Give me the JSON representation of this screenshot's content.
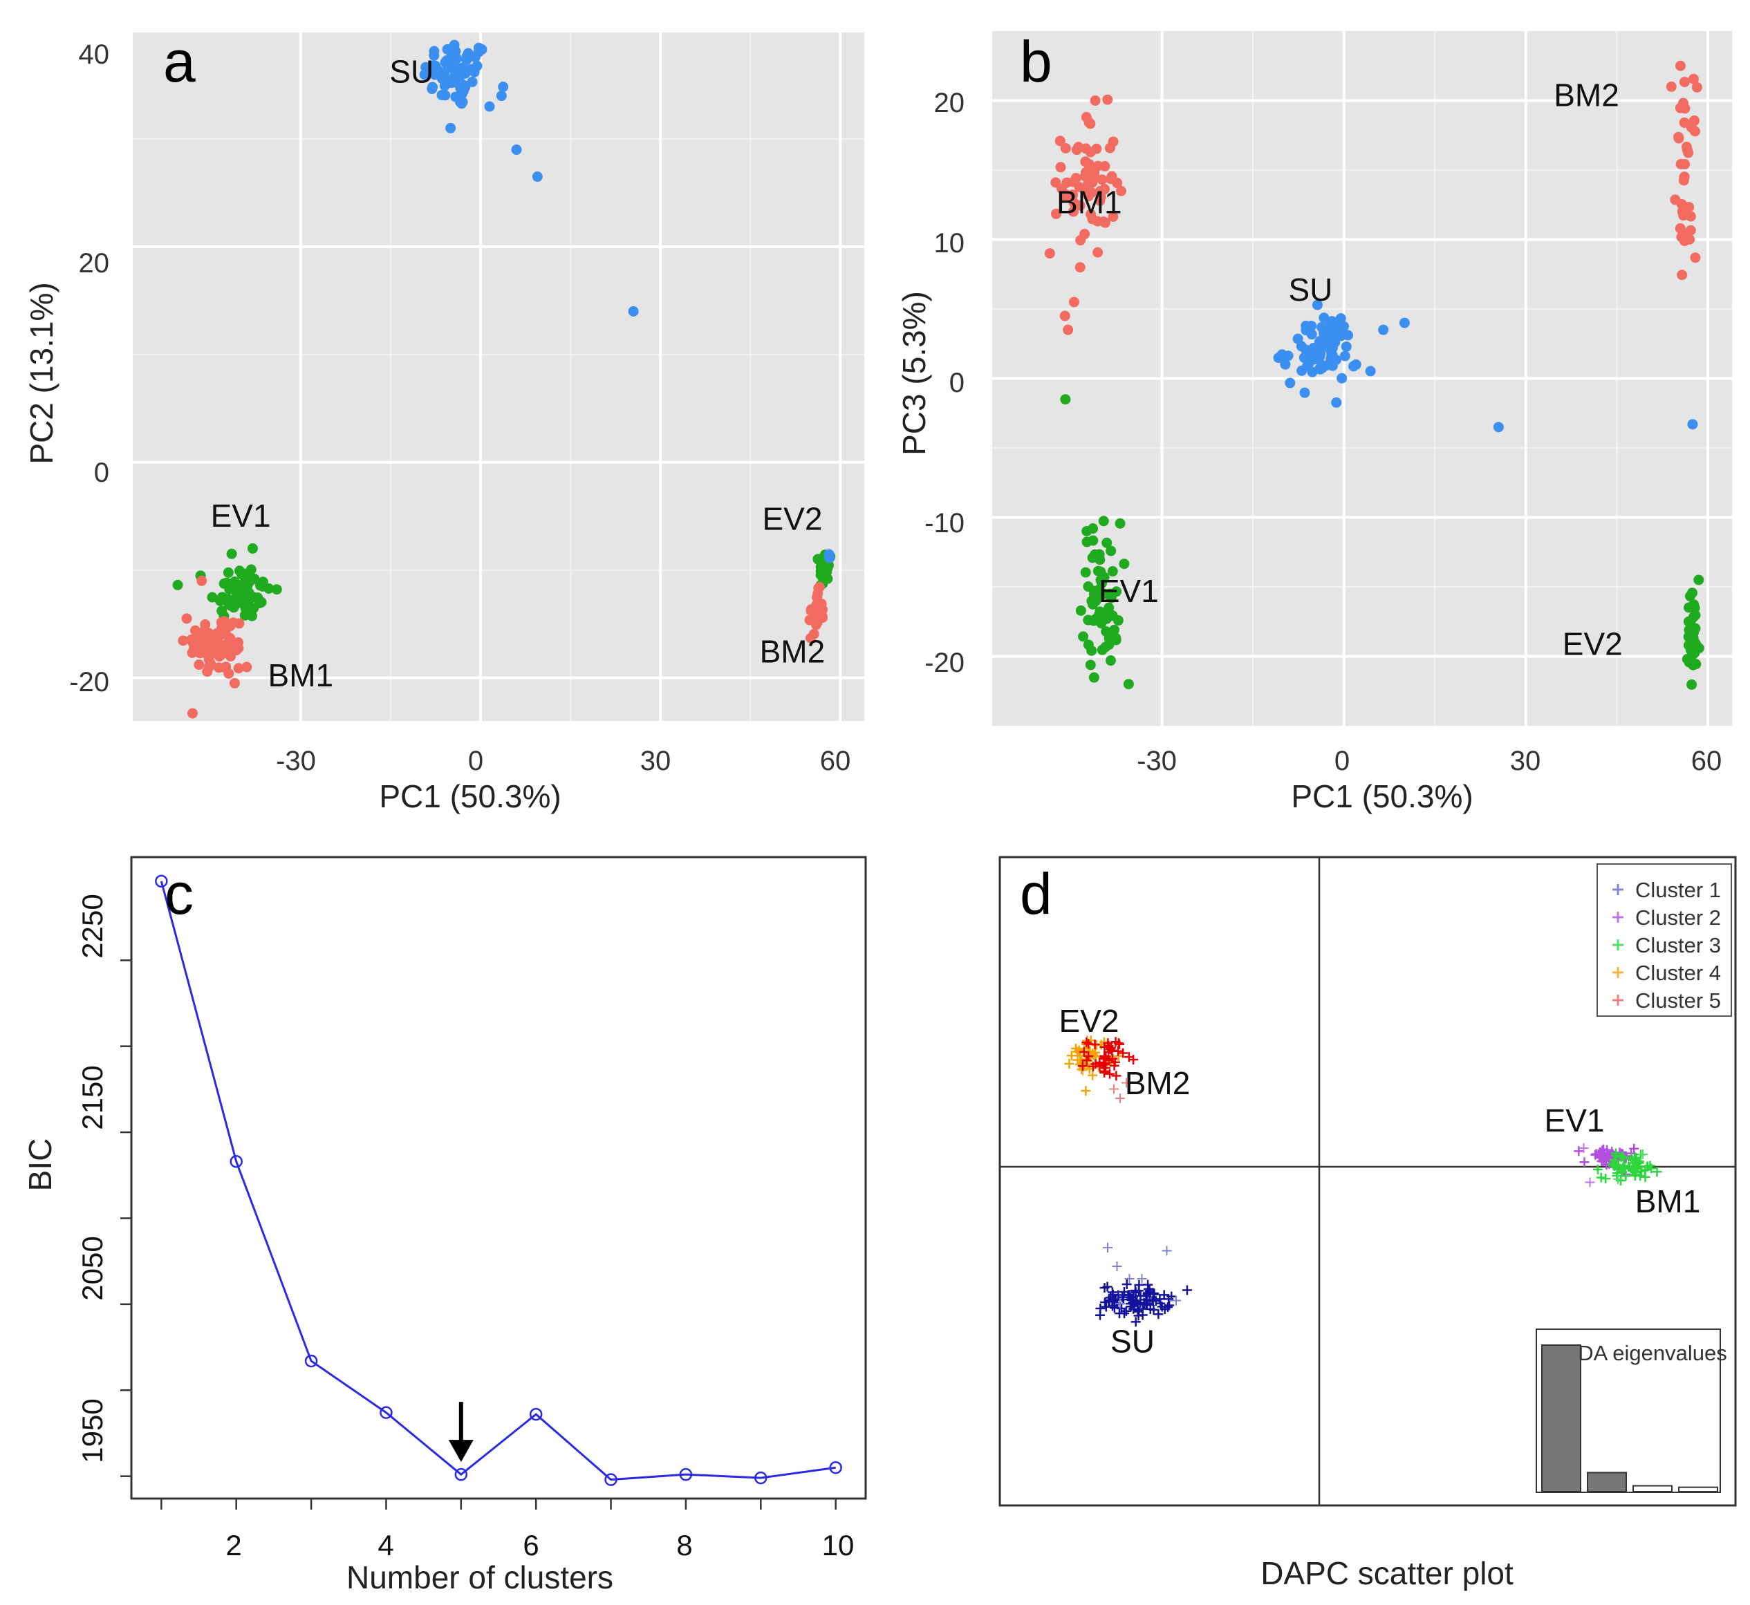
{
  "colors": {
    "SU": "#3a8ff0",
    "BM": "#f26b61",
    "EV": "#1faa1f",
    "panel_bg": "#e5e5e5",
    "grid": "#ffffff",
    "line_c": "#2a2ae6",
    "cluster1": "#7d84d6",
    "cluster2": "#c473e6",
    "cluster3": "#52e06b",
    "cluster4": "#f7b042",
    "cluster5": "#ef7f7f",
    "su_d": "#12129c",
    "ev2_d": "#f5a300",
    "bm2_d": "#e60000",
    "ev1_d": "#b14fe0",
    "bm1_d": "#2ed63d",
    "bar_fill": "#777777"
  },
  "chart_data": [
    {
      "id": "a",
      "type": "scatter",
      "letter": "a",
      "xlabel": "PC1 (50.3%)",
      "ylabel": "PC2 (13.1%)",
      "xlim": [
        -58,
        64
      ],
      "ylim": [
        -24,
        40
      ],
      "xticks": [
        -30,
        0,
        30,
        60
      ],
      "yticks": [
        -20,
        0,
        20,
        40
      ],
      "tick_labels_x": [
        "-30",
        "0",
        "30",
        "60"
      ],
      "tick_labels_y": [
        "-20",
        "0",
        "20",
        "40"
      ],
      "groups": [
        {
          "name": "SU",
          "color_key": "SU",
          "center": [
            -4,
            36
          ],
          "spread": [
            2.8,
            1.6
          ],
          "n": 60,
          "extra": [
            [
              -5,
              31
            ],
            [
              3.5,
              34
            ],
            [
              1.5,
              33
            ],
            [
              6,
              29
            ],
            [
              9.5,
              26.5
            ],
            [
              25.5,
              14
            ]
          ]
        },
        {
          "name": "EV1",
          "color_key": "EV",
          "center": [
            -40,
            -12
          ],
          "spread": [
            2.6,
            1.3
          ],
          "n": 60,
          "extra": [
            [
              -41.5,
              -8.5
            ],
            [
              -38,
              -8
            ]
          ]
        },
        {
          "name": "BM1",
          "color_key": "BM",
          "center": [
            -44,
            -17
          ],
          "spread": [
            2.6,
            1.5
          ],
          "n": 65,
          "extra": [
            [
              -49,
              -14.5
            ],
            [
              -41,
              -20.5
            ],
            [
              -39,
              -19
            ],
            [
              -46.5,
              -11
            ]
          ]
        },
        {
          "name": "EV2",
          "color_key": "EV",
          "center": [
            57.5,
            -10
          ],
          "spread": [
            0.5,
            1.0
          ],
          "n": 22,
          "extra": []
        },
        {
          "name": "EV2-su",
          "color_key": "SU",
          "center": [
            58,
            -9
          ],
          "spread": [
            0.3,
            0.3
          ],
          "n": 2,
          "extra": []
        },
        {
          "name": "BM2",
          "color_key": "BM",
          "center": [
            56,
            -14
          ],
          "spread": [
            0.6,
            1.0
          ],
          "n": 30,
          "extra": []
        }
      ],
      "labels": [
        {
          "text": "SU",
          "x": -11.5,
          "y": 36
        },
        {
          "text": "EV1",
          "x": -40,
          "y": -5.2
        },
        {
          "text": "BM1",
          "x": -30,
          "y": -20
        },
        {
          "text": "EV2",
          "x": 52,
          "y": -5.5
        },
        {
          "text": "BM2",
          "x": 52,
          "y": -17.8
        }
      ]
    },
    {
      "id": "b",
      "type": "scatter",
      "letter": "b",
      "xlabel": "PC1 (50.3%)",
      "ylabel": "PC3 (5.3%)",
      "xlim": [
        -58,
        64
      ],
      "ylim": [
        -25,
        25
      ],
      "xticks": [
        -30,
        0,
        30,
        60
      ],
      "yticks": [
        -20,
        -10,
        0,
        10,
        20
      ],
      "tick_labels_x": [
        "-30",
        "0",
        "30",
        "60"
      ],
      "tick_labels_y": [
        "-20",
        "-10",
        "0",
        "10",
        "20"
      ],
      "groups": [
        {
          "name": "BM1",
          "color_key": "BM",
          "center": [
            -42,
            14
          ],
          "spread": [
            2.2,
            2.6
          ],
          "n": 60,
          "extra": [
            [
              -48.5,
              9
            ],
            [
              -46,
              4.5
            ],
            [
              -45.5,
              3.5
            ],
            [
              -44.5,
              5.5
            ],
            [
              -41,
              20
            ],
            [
              -43.5,
              8
            ]
          ]
        },
        {
          "name": "BM1-ev",
          "color_key": "EV",
          "center": [
            -46,
            -1.5
          ],
          "spread": [
            0.1,
            0.1
          ],
          "n": 1,
          "extra": []
        },
        {
          "name": "EV1",
          "color_key": "EV",
          "center": [
            -40,
            -15.5
          ],
          "spread": [
            1.6,
            2.6
          ],
          "n": 60,
          "extra": [
            [
              -35.5,
              -22
            ]
          ]
        },
        {
          "name": "SU",
          "color_key": "SU",
          "center": [
            -4,
            2
          ],
          "spread": [
            3.0,
            1.3
          ],
          "n": 75,
          "extra": [
            [
              6.5,
              3.5
            ],
            [
              10,
              4
            ],
            [
              2,
              1
            ],
            [
              25.5,
              -3.5
            ],
            [
              57.5,
              -3.3
            ]
          ]
        },
        {
          "name": "BM2",
          "color_key": "BM",
          "center": [
            56.5,
            15
          ],
          "spread": [
            0.8,
            3.0
          ],
          "n": 35,
          "extra": [
            [
              55.5,
              22.5
            ],
            [
              54,
              21
            ],
            [
              57,
              10
            ]
          ]
        },
        {
          "name": "EV2",
          "color_key": "EV",
          "center": [
            57.5,
            -19
          ],
          "spread": [
            0.6,
            1.8
          ],
          "n": 32,
          "extra": [
            [
              58.5,
              -14.5
            ]
          ]
        }
      ],
      "labels": [
        {
          "text": "BM1",
          "x": -42,
          "y": 12.5
        },
        {
          "text": "SU",
          "x": -5.5,
          "y": 6.2
        },
        {
          "text": "EV1",
          "x": -35.5,
          "y": -15.5
        },
        {
          "text": "BM2",
          "x": 40,
          "y": 20.2
        },
        {
          "text": "EV2",
          "x": 41,
          "y": -19.3
        }
      ]
    },
    {
      "id": "c",
      "type": "line",
      "letter": "c",
      "xlabel": "Number of clusters",
      "ylabel": "BIC",
      "x": [
        1,
        2,
        3,
        4,
        5,
        6,
        7,
        8,
        9,
        10
      ],
      "y": [
        2296,
        2133,
        2017,
        1987,
        1951,
        1986,
        1948,
        1951,
        1949,
        1955
      ],
      "xlim": [
        0.6,
        10.4
      ],
      "ylim": [
        1937,
        2310
      ],
      "xticks": [
        2,
        4,
        6,
        8,
        10
      ],
      "yticks": [
        1950,
        2050,
        2150,
        2250
      ],
      "tick_labels_x": [
        "2",
        "4",
        "6",
        "8",
        "10"
      ],
      "tick_labels_y": [
        "1950",
        "2050",
        "2150",
        "2250"
      ],
      "minor_yticks": [
        2000,
        2100,
        2200
      ],
      "arrow_at": [
        5,
        1951
      ]
    },
    {
      "id": "d",
      "type": "scatter",
      "letter": "d",
      "caption": "DAPC scatter plot",
      "xlim": [
        -10,
        10
      ],
      "ylim": [
        -10,
        10
      ],
      "legend": [
        "Cluster 1",
        "Cluster 2",
        "Cluster 3",
        "Cluster 4",
        "Cluster 5"
      ],
      "legend_color_keys": [
        "cluster1",
        "cluster2",
        "cluster3",
        "cluster4",
        "cluster5"
      ],
      "groups": [
        {
          "name": "SU",
          "color_key": "su_d",
          "center": [
            -5.9,
            -4.3
          ],
          "spread": [
            0.55,
            0.25
          ],
          "n": 90,
          "extra_key": "cluster1",
          "extra": [
            [
              -6.8,
              -2.6
            ],
            [
              -6.5,
              -3.2
            ],
            [
              -4.9,
              -2.7
            ],
            [
              -5.7,
              -3.6
            ],
            [
              -6.1,
              -3.6
            ],
            [
              -4.6,
              -4.3
            ],
            [
              -6.4,
              -4.4
            ]
          ]
        },
        {
          "name": "EV2",
          "color_key": "ev2_d",
          "center": [
            -7.35,
            3.6
          ],
          "spread": [
            0.3,
            0.3
          ],
          "n": 40,
          "extra_key": "cluster4",
          "extra": [
            [
              -7.6,
              3.1
            ],
            [
              -7.1,
              3.2
            ]
          ]
        },
        {
          "name": "BM2",
          "color_key": "bm2_d",
          "center": [
            -6.85,
            3.5
          ],
          "spread": [
            0.3,
            0.3
          ],
          "n": 40,
          "extra_key": "cluster5",
          "extra": [
            [
              -6.2,
              2.7
            ],
            [
              -6.4,
              2.2
            ],
            [
              -6.6,
              2.5
            ]
          ]
        },
        {
          "name": "EV1",
          "color_key": "ev1_d",
          "center": [
            9.3,
            0.3
          ],
          "spread": [
            0.4,
            0.18
          ],
          "n": 45,
          "extra_key": "cluster2",
          "extra": [
            [
              8.5,
              0.6
            ],
            [
              8.7,
              -0.5
            ]
          ]
        },
        {
          "name": "BM1",
          "color_key": "bm1_d",
          "center": [
            10.0,
            0.0
          ],
          "spread": [
            0.45,
            0.18
          ],
          "n": 60,
          "extra_key": "cluster3",
          "extra": [
            [
              9.6,
              -0.4
            ],
            [
              10.4,
              0.4
            ]
          ]
        }
      ],
      "labels": [
        {
          "text": "EV2",
          "x": -7.4,
          "y": 4.6
        },
        {
          "text": "BM2",
          "x": -5.2,
          "y": 2.6
        },
        {
          "text": "EV1",
          "x": 8.2,
          "y": 1.4
        },
        {
          "text": "BM1",
          "x": 11.2,
          "y": -1.2
        },
        {
          "text": "SU",
          "x": -6.0,
          "y": -5.7
        }
      ],
      "eigen_title": "DA eigenvalues",
      "eigenvalues": [
        1.0,
        0.13,
        0.04,
        0.03
      ]
    }
  ]
}
